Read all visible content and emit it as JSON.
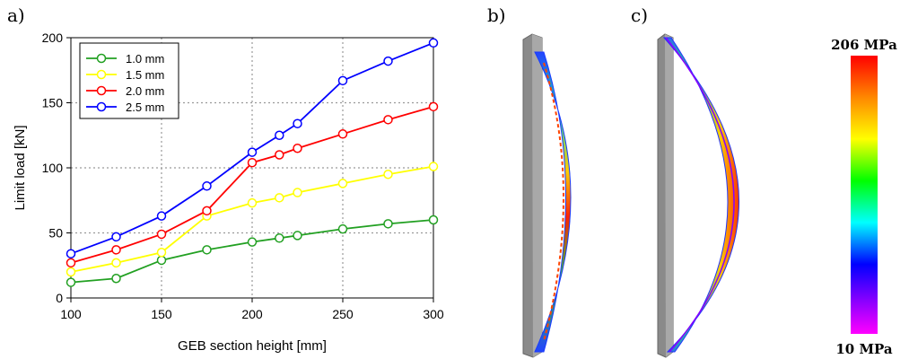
{
  "panels": {
    "a": "a)",
    "b": "b)",
    "c": "c)"
  },
  "colorbar": {
    "max_label": "206 MPa",
    "min_label": "10 MPa"
  },
  "chart_data": {
    "type": "line",
    "xlabel": "GEB section height [mm]",
    "ylabel": "Limit load [kN]",
    "xlim": [
      100,
      300
    ],
    "ylim": [
      0,
      200
    ],
    "xticks": [
      100,
      150,
      200,
      250,
      300
    ],
    "yticks": [
      0,
      50,
      100,
      150,
      200
    ],
    "grid": true,
    "legend_position": "top-left",
    "series": [
      {
        "name": "1.0 mm",
        "color": "#22a022",
        "x": [
          100,
          125,
          150,
          175,
          200,
          215,
          225,
          250,
          275,
          300
        ],
        "values": [
          12,
          15,
          29,
          37,
          43,
          46,
          48,
          53,
          57,
          60
        ]
      },
      {
        "name": "1.5 mm",
        "color": "#ffff00",
        "x": [
          100,
          125,
          150,
          175,
          200,
          215,
          225,
          250,
          275,
          300
        ],
        "values": [
          20,
          27,
          35,
          63,
          73,
          77,
          81,
          88,
          95,
          101
        ]
      },
      {
        "name": "2.0 mm",
        "color": "#ff0000",
        "x": [
          100,
          125,
          150,
          175,
          200,
          215,
          225,
          250,
          275,
          300
        ],
        "values": [
          27,
          37,
          49,
          67,
          104,
          110,
          115,
          126,
          137,
          147
        ]
      },
      {
        "name": "2.5 mm",
        "color": "#0000ff",
        "x": [
          100,
          125,
          150,
          175,
          200,
          215,
          225,
          250,
          275,
          300
        ],
        "values": [
          34,
          47,
          63,
          86,
          112,
          125,
          134,
          167,
          182,
          196
        ]
      }
    ]
  }
}
